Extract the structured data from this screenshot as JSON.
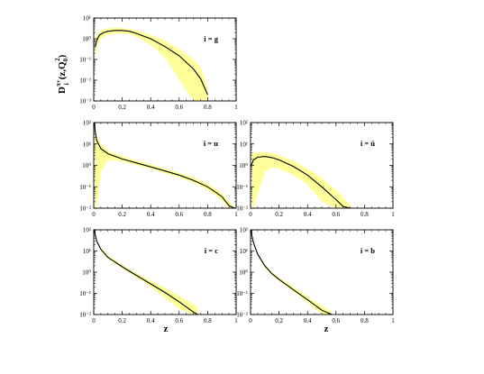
{
  "figure": {
    "ylabel": {
      "main": "D",
      "sup": "π+",
      "sub": "i",
      "arg": "(z,Q",
      "argsub": "0",
      "argsup": "2",
      "close": ")"
    },
    "xlabel": "z"
  },
  "colors": {
    "band": "#ffff99",
    "curve": "#000000",
    "frame": "#000000"
  },
  "chart_data": [
    {
      "type": "line",
      "panel": "gluon",
      "label": "i = g",
      "x_ticks": [
        "0",
        "0.2",
        "0.4",
        "0.6",
        "0.8",
        "1"
      ],
      "y_ticks": [
        "10⁻³",
        "10⁻²",
        "10⁻¹",
        "10⁰",
        "10¹"
      ],
      "xlim": [
        0,
        1
      ],
      "ylim_log10": [
        -3,
        1
      ],
      "yscale": "log",
      "band": "uncertainty",
      "x": [
        0.01,
        0.02,
        0.04,
        0.07,
        0.1,
        0.15,
        0.2,
        0.25,
        0.3,
        0.4,
        0.5,
        0.6,
        0.7,
        0.75,
        0.8
      ],
      "y": [
        0.4,
        0.8,
        1.5,
        2.0,
        2.3,
        2.5,
        2.5,
        2.3,
        1.8,
        1.0,
        0.42,
        0.15,
        0.035,
        0.012,
        0.002
      ],
      "band_low": [
        0.1,
        0.3,
        0.8,
        1.3,
        1.6,
        1.8,
        1.8,
        1.6,
        1.2,
        0.5,
        0.12,
        0.01,
        0.001,
        0.001,
        0.001
      ],
      "band_high": [
        1.0,
        1.5,
        2.3,
        2.9,
        3.2,
        3.3,
        3.3,
        3.0,
        2.5,
        1.5,
        0.8,
        0.3,
        0.1,
        0.04,
        0.005
      ]
    },
    {
      "type": "line",
      "panel": "u",
      "label": "i = u",
      "x_ticks": [
        "0",
        "0.2",
        "0.4",
        "0.6",
        "0.8",
        "1"
      ],
      "y_ticks": [
        "10⁻²",
        "10⁻¹",
        "10⁰",
        "10¹",
        "10²"
      ],
      "xlim": [
        0,
        1
      ],
      "ylim_log10": [
        -2,
        2
      ],
      "yscale": "log",
      "band": "uncertainty",
      "x": [
        0.005,
        0.01,
        0.02,
        0.05,
        0.1,
        0.2,
        0.3,
        0.4,
        0.5,
        0.6,
        0.7,
        0.8,
        0.9,
        0.95,
        0.99
      ],
      "y": [
        100,
        40,
        15,
        6,
        3.5,
        2.0,
        1.3,
        0.85,
        0.55,
        0.35,
        0.2,
        0.1,
        0.035,
        0.013,
        0.01
      ],
      "band_low": [
        0.01,
        0.01,
        0.01,
        0.5,
        1.8,
        1.5,
        1.0,
        0.65,
        0.42,
        0.27,
        0.15,
        0.07,
        0.022,
        0.01,
        0.01
      ],
      "band_high": [
        100,
        50,
        25,
        10,
        5.0,
        2.7,
        1.7,
        1.1,
        0.7,
        0.45,
        0.27,
        0.14,
        0.05,
        0.02,
        0.01
      ]
    },
    {
      "type": "line",
      "panel": "ubar",
      "label": "i = ū",
      "x_ticks": [
        "0",
        "0.2",
        "0.4",
        "0.6",
        "0.8",
        "1"
      ],
      "y_ticks": [
        "10⁻²",
        "10⁻¹",
        "10⁰",
        "10¹",
        "10²"
      ],
      "xlim": [
        0,
        1
      ],
      "ylim_log10": [
        -2,
        2
      ],
      "yscale": "log",
      "band": "uncertainty",
      "x": [
        0.005,
        0.02,
        0.05,
        0.1,
        0.15,
        0.2,
        0.3,
        0.4,
        0.5,
        0.6,
        0.65,
        0.7
      ],
      "y": [
        1.0,
        1.8,
        2.4,
        2.6,
        2.3,
        1.8,
        0.9,
        0.35,
        0.1,
        0.025,
        0.012,
        0.01
      ],
      "band_low": [
        0.01,
        0.01,
        0.05,
        0.5,
        0.8,
        0.7,
        0.35,
        0.12,
        0.02,
        0.01,
        0.01,
        0.01
      ],
      "band_high": [
        4.0,
        4.0,
        4.0,
        4.2,
        3.7,
        3.0,
        1.6,
        0.7,
        0.25,
        0.07,
        0.03,
        0.015
      ]
    },
    {
      "type": "line",
      "panel": "c",
      "label": "i = c",
      "x_ticks": [
        "0",
        "0.2",
        "0.4",
        "0.6",
        "0.8",
        "1"
      ],
      "y_ticks": [
        "10⁻²",
        "10⁻¹",
        "10⁰",
        "10¹",
        "10²"
      ],
      "xlim": [
        0,
        1
      ],
      "ylim_log10": [
        -2,
        2
      ],
      "yscale": "log",
      "band": "uncertainty",
      "x": [
        0.005,
        0.01,
        0.02,
        0.05,
        0.1,
        0.2,
        0.3,
        0.4,
        0.5,
        0.6,
        0.7,
        0.73
      ],
      "y": [
        100,
        60,
        30,
        12,
        5.0,
        1.8,
        0.7,
        0.28,
        0.11,
        0.04,
        0.013,
        0.01
      ],
      "band_low": [
        90,
        50,
        25,
        10,
        4.2,
        1.5,
        0.55,
        0.2,
        0.06,
        0.018,
        0.01,
        0.01
      ],
      "band_high": [
        120,
        70,
        35,
        14,
        6.0,
        2.2,
        0.9,
        0.4,
        0.18,
        0.075,
        0.03,
        0.02
      ]
    },
    {
      "type": "line",
      "panel": "b",
      "label": "i = b",
      "x_ticks": [
        "0",
        "0.2",
        "0.4",
        "0.6",
        "0.8",
        "1"
      ],
      "y_ticks": [
        "10⁻²",
        "10⁻¹",
        "10⁰",
        "10¹",
        "10²"
      ],
      "xlim": [
        0,
        1
      ],
      "ylim_log10": [
        -2,
        2
      ],
      "yscale": "log",
      "band": "uncertainty",
      "x": [
        0.005,
        0.01,
        0.02,
        0.05,
        0.1,
        0.15,
        0.2,
        0.3,
        0.4,
        0.5,
        0.57
      ],
      "y": [
        100,
        50,
        25,
        7.0,
        2.0,
        0.85,
        0.45,
        0.15,
        0.05,
        0.016,
        0.01
      ],
      "band_low": [
        90,
        45,
        22,
        6.0,
        1.7,
        0.7,
        0.38,
        0.12,
        0.035,
        0.01,
        0.01
      ],
      "band_high": [
        120,
        60,
        30,
        8.0,
        2.4,
        1.0,
        0.55,
        0.2,
        0.07,
        0.025,
        0.014
      ]
    }
  ]
}
